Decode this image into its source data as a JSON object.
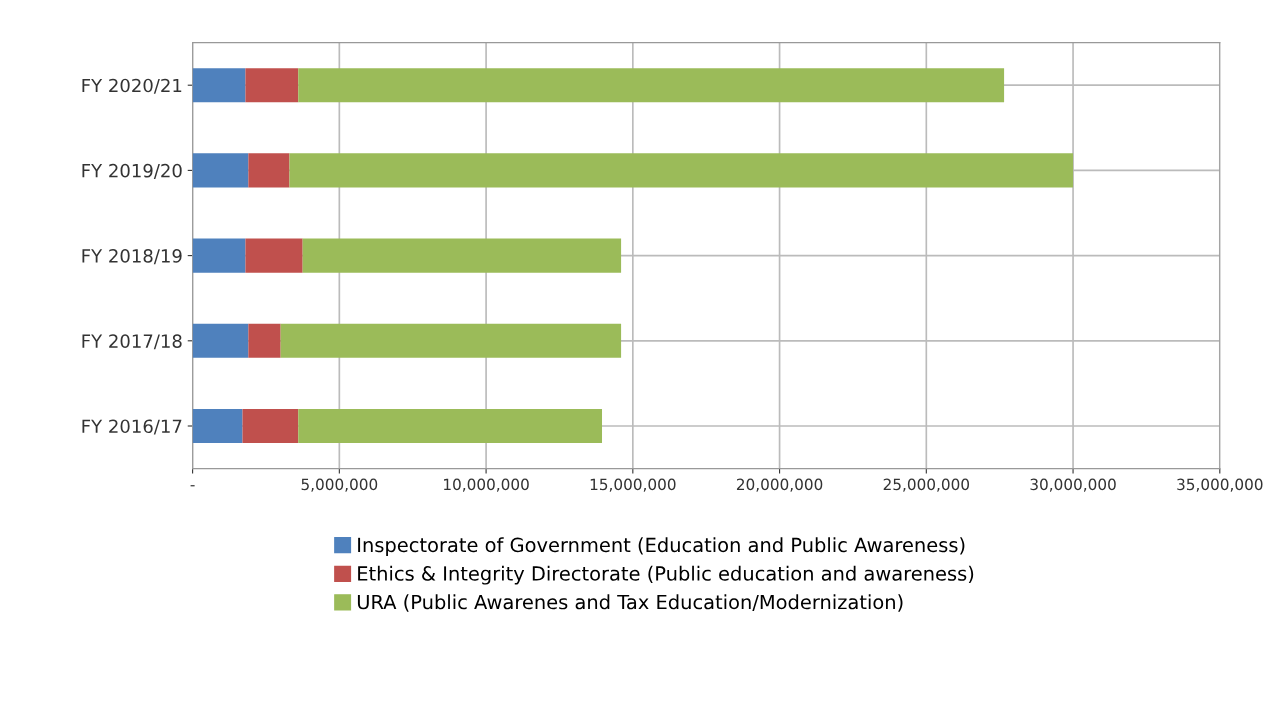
{
  "chart_data": {
    "type": "bar",
    "orientation": "horizontal",
    "stacked": true,
    "categories": [
      "FY 2020/21",
      "FY 2019/20",
      "FY 2018/19",
      "FY 2017/18",
      "FY 2016/17"
    ],
    "series": [
      {
        "name": "Inspectorate of Government (Education and Public Awareness)",
        "color": "#4f81bd",
        "values": [
          1800000,
          1900000,
          1800000,
          1900000,
          1700000
        ]
      },
      {
        "name": "Ethics & Integrity Directorate (Public education and awareness)",
        "color": "#c0504d",
        "values": [
          1800000,
          1400000,
          1950000,
          1100000,
          1900000
        ]
      },
      {
        "name": "URA (Public Awarenes and Tax Education/Modernization)",
        "color": "#9bbb59",
        "values": [
          24050000,
          26700000,
          10850000,
          11600000,
          10350000
        ]
      }
    ],
    "xlim": [
      0,
      35000000
    ],
    "xticks": [
      {
        "value": 0,
        "label": "-"
      },
      {
        "value": 5000000,
        "label": "5,000,000"
      },
      {
        "value": 10000000,
        "label": "10,000,000"
      },
      {
        "value": 15000000,
        "label": "15,000,000"
      },
      {
        "value": 20000000,
        "label": "20,000,000"
      },
      {
        "value": 25000000,
        "label": "25,000,000"
      },
      {
        "value": 30000000,
        "label": "30,000,000"
      },
      {
        "value": 35000000,
        "label": "35,000,000"
      }
    ],
    "grid": true,
    "legend": "bottom"
  }
}
